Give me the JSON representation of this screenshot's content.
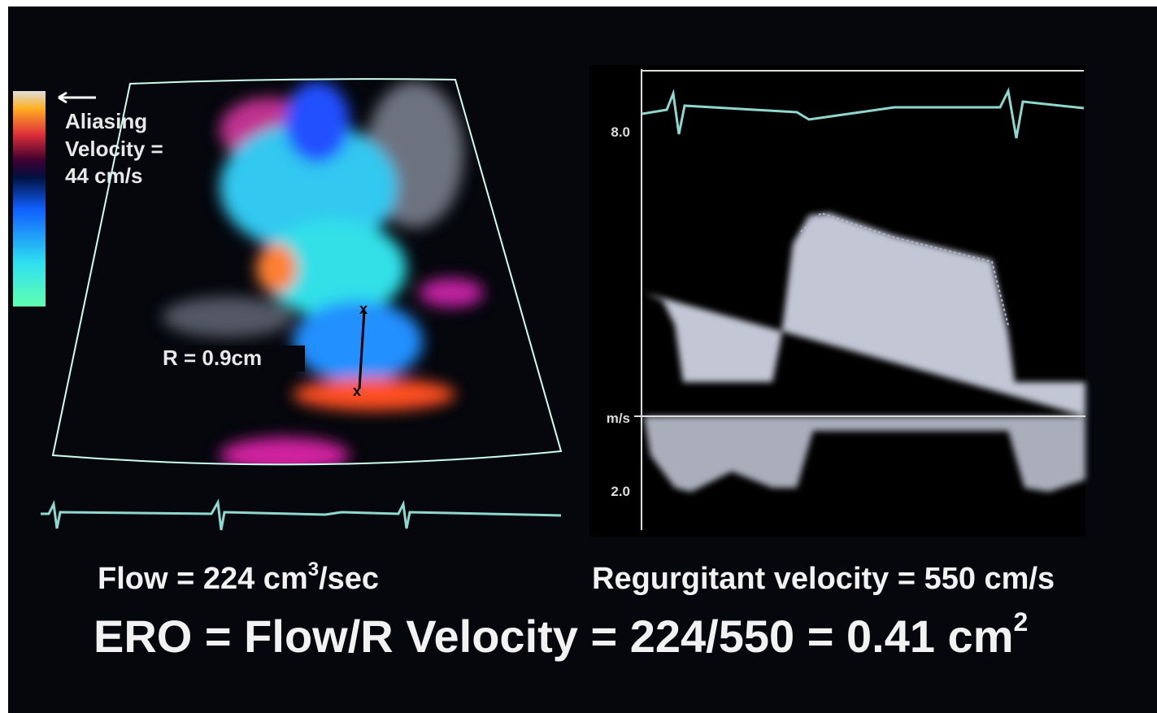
{
  "color_doppler": {
    "legend": [
      "Aliasing",
      "Velocity =",
      "44 cm/s"
    ],
    "radius_label": "R = 0.9cm",
    "markers": [
      "x",
      "x"
    ]
  },
  "spectral_doppler": {
    "axis_labels": [
      "8.0",
      "m/s",
      "2.0"
    ]
  },
  "captions": {
    "flow": {
      "text": "Flow = 224 cm",
      "superscript": "3",
      "suffix": "/sec"
    },
    "velocity": "Regurgitant velocity = 550 cm/s",
    "ero": {
      "text": "ERO = Flow/R Velocity = 224/550 = 0.41 cm",
      "superscript": "2"
    }
  }
}
